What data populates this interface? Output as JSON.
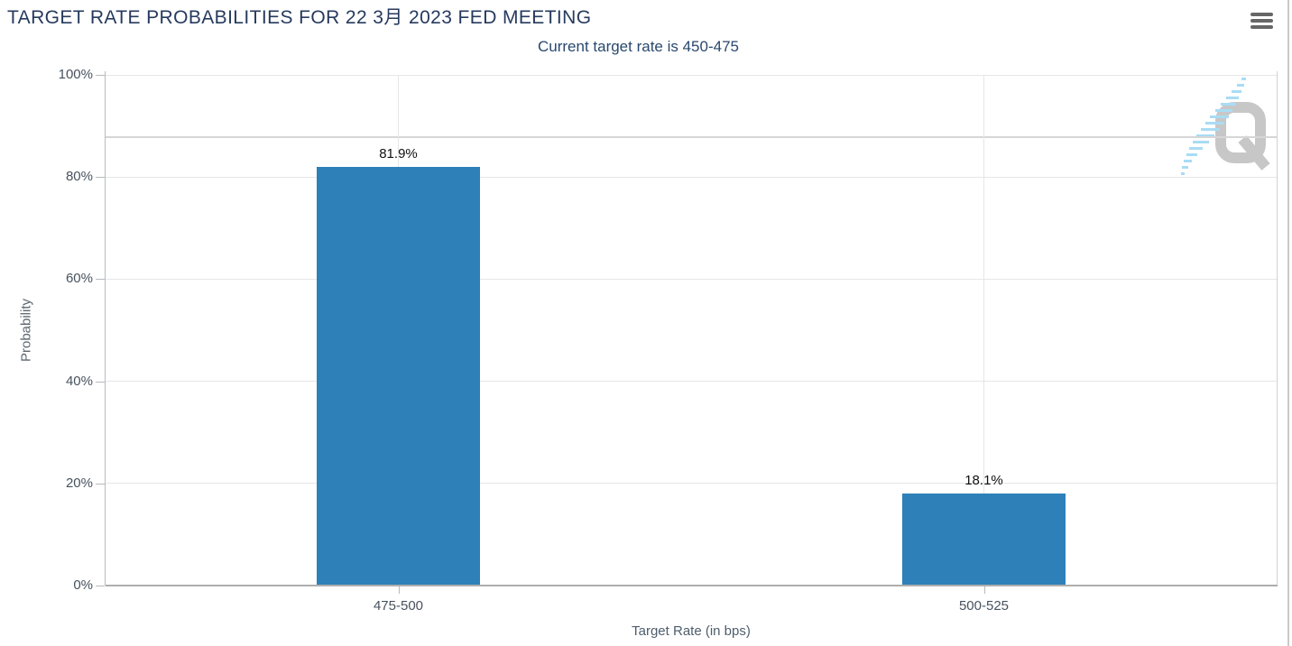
{
  "chart_data": {
    "type": "bar",
    "title": "TARGET RATE PROBABILITIES FOR 22 3月 2023 FED MEETING",
    "subtitle": "Current target rate is 450-475",
    "categories": [
      "475-500",
      "500-525"
    ],
    "values": [
      81.9,
      18.1
    ],
    "value_labels": [
      "81.9%",
      "18.1%"
    ],
    "xlabel": "Target Rate (in bps)",
    "ylabel": "Probability",
    "y_ticks": [
      "0%",
      "20%",
      "40%",
      "60%",
      "80%",
      "100%"
    ],
    "ylim": [
      0,
      100
    ],
    "grid": "on",
    "legend": "none",
    "reference_line_value": 87.8,
    "bar_color": "#2e80b9"
  },
  "watermark": {
    "letter": "Q"
  },
  "colors": {
    "title": "#263a5e",
    "subtitle": "#29486e",
    "gridline": "#e6e6e6",
    "bar": "#2e80b9",
    "menu_icon": "#666666",
    "watermark_q": "#c7c7c7",
    "watermark_swoosh": "#a9dcf4"
  }
}
